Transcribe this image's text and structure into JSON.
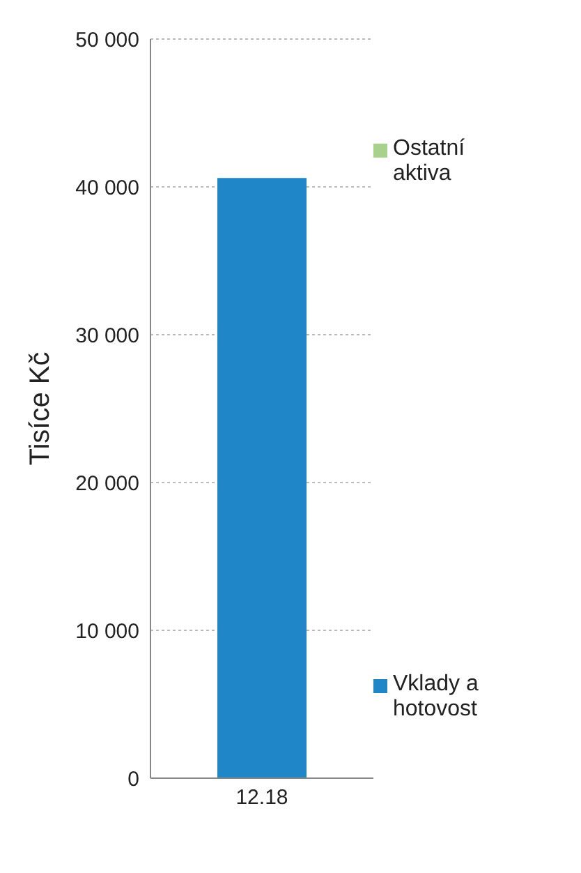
{
  "chart_data": {
    "type": "bar",
    "stacked": true,
    "ylabel": "Tisíce Kč",
    "categories": [
      "12.18"
    ],
    "series": [
      {
        "name": "Vklady a hotovost",
        "color": "#1f87c8",
        "values": [
          40600
        ]
      },
      {
        "name": "Ostatní aktiva",
        "color": "#a9d18e",
        "values": [
          0
        ]
      }
    ],
    "ylim": [
      0,
      50000
    ],
    "yticks": [
      {
        "value": 0,
        "label": "0"
      },
      {
        "value": 10000,
        "label": "10 000"
      },
      {
        "value": 20000,
        "label": "20 000"
      },
      {
        "value": 30000,
        "label": "30 000"
      },
      {
        "value": 40000,
        "label": "40 000"
      },
      {
        "value": 50000,
        "label": "50 000"
      }
    ],
    "grid": "y",
    "legend": "right"
  }
}
